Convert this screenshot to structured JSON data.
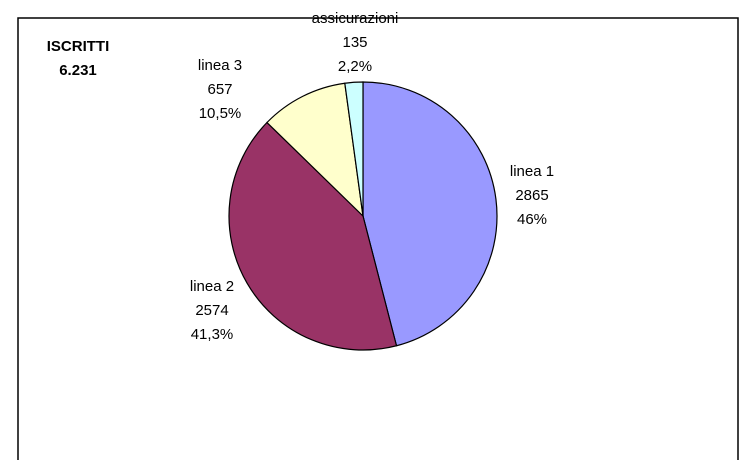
{
  "chart_data": {
    "type": "pie",
    "title": "ISCRITTI",
    "subtitle": "6.231",
    "categories": [
      "linea 1",
      "linea 2",
      "linea 3",
      "assicurazioni"
    ],
    "values": [
      2865,
      2574,
      657,
      135
    ],
    "percentages": [
      46,
      41.3,
      10.5,
      2.2
    ],
    "percentage_labels": [
      "46%",
      "41,3%",
      "10,5%",
      "2,2%"
    ],
    "colors": [
      "#9999ff",
      "#993366",
      "#ffffcc",
      "#ccffff"
    ]
  }
}
